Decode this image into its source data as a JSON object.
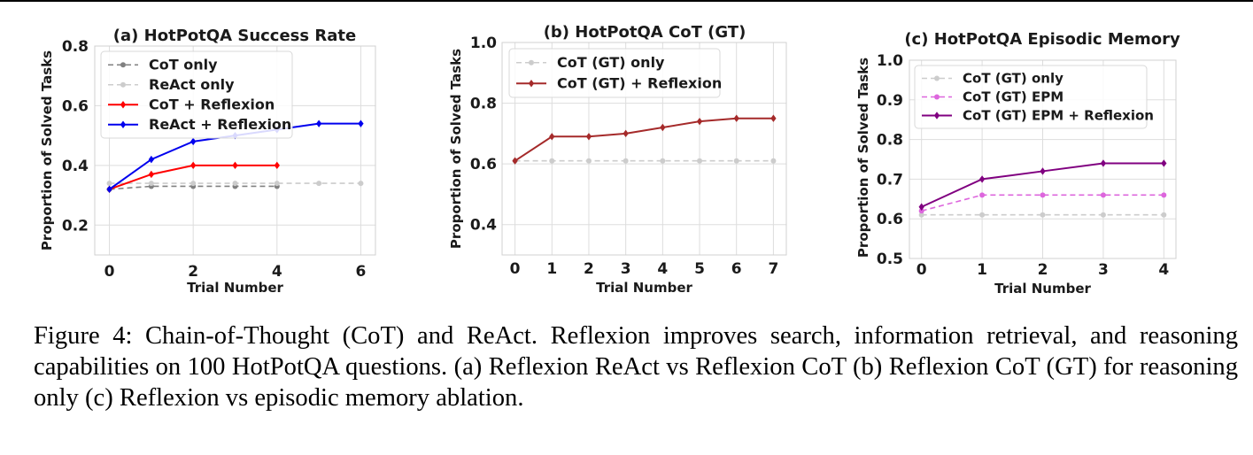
{
  "chart_data": [
    {
      "type": "line",
      "title": "(a) HotPotQA Success Rate",
      "xlabel": "Trial Number",
      "ylabel": "Proportion of Solved Tasks",
      "xlim": [
        -0.35,
        6.35
      ],
      "ylim": [
        0.1,
        0.8
      ],
      "xticks": [
        0,
        2,
        4,
        6
      ],
      "yticks": [
        0.2,
        0.4,
        0.6,
        0.8
      ],
      "grid": true,
      "legend": "top-left",
      "series": [
        {
          "name": "CoT only",
          "color": "#808080",
          "dash": true,
          "x": [
            0,
            1,
            2,
            3,
            4
          ],
          "values": [
            0.32,
            0.33,
            0.33,
            0.33,
            0.33
          ]
        },
        {
          "name": "ReAct only",
          "color": "#cccccc",
          "dash": true,
          "x": [
            0,
            1,
            2,
            3,
            4,
            5,
            6
          ],
          "values": [
            0.34,
            0.34,
            0.34,
            0.34,
            0.34,
            0.34,
            0.34
          ]
        },
        {
          "name": "CoT + Reflexion",
          "color": "#ff0000",
          "dash": false,
          "x": [
            0,
            1,
            2,
            3,
            4
          ],
          "values": [
            0.32,
            0.37,
            0.4,
            0.4,
            0.4
          ]
        },
        {
          "name": "ReAct + Reflexion",
          "color": "#0000ee",
          "dash": false,
          "x": [
            0,
            1,
            2,
            3,
            4,
            5,
            6
          ],
          "values": [
            0.32,
            0.42,
            0.48,
            0.5,
            0.52,
            0.54,
            0.54
          ]
        }
      ]
    },
    {
      "type": "line",
      "title": "(b) HotPotQA CoT (GT)",
      "xlabel": "Trial Number",
      "ylabel": "Proportion of Solved Tasks",
      "xlim": [
        -0.35,
        7.35
      ],
      "ylim": [
        0.3,
        1.0
      ],
      "xticks": [
        0,
        1,
        2,
        3,
        4,
        5,
        6,
        7
      ],
      "yticks": [
        0.4,
        0.6,
        0.8,
        1.0
      ],
      "grid": true,
      "legend": "top-left",
      "series": [
        {
          "name": "CoT (GT) only",
          "color": "#cccccc",
          "dash": true,
          "x": [
            0,
            1,
            2,
            3,
            4,
            5,
            6,
            7
          ],
          "values": [
            0.61,
            0.61,
            0.61,
            0.61,
            0.61,
            0.61,
            0.61,
            0.61
          ]
        },
        {
          "name": "CoT (GT) + Reflexion",
          "color": "#a52a2a",
          "dash": false,
          "x": [
            0,
            1,
            2,
            3,
            4,
            5,
            6,
            7
          ],
          "values": [
            0.61,
            0.69,
            0.69,
            0.7,
            0.72,
            0.74,
            0.75,
            0.75
          ]
        }
      ]
    },
    {
      "type": "line",
      "title": "(c) HotPotQA Episodic Memory",
      "xlabel": "Trial Number",
      "ylabel": "Proportion of Solved Tasks",
      "xlim": [
        -0.2,
        4.2
      ],
      "ylim": [
        0.5,
        1.0
      ],
      "xticks": [
        0,
        1,
        2,
        3,
        4
      ],
      "yticks": [
        0.5,
        0.6,
        0.7,
        0.8,
        0.9,
        1.0
      ],
      "grid": true,
      "legend": "top-left",
      "series": [
        {
          "name": "CoT (GT) only",
          "color": "#cccccc",
          "dash": true,
          "x": [
            0,
            1,
            2,
            3,
            4
          ],
          "values": [
            0.61,
            0.61,
            0.61,
            0.61,
            0.61
          ]
        },
        {
          "name": "CoT (GT) EPM",
          "color": "#dd66dd",
          "dash": true,
          "x": [
            0,
            1,
            2,
            3,
            4
          ],
          "values": [
            0.62,
            0.66,
            0.66,
            0.66,
            0.66
          ]
        },
        {
          "name": "CoT (GT) EPM + Reflexion",
          "color": "#800080",
          "dash": false,
          "x": [
            0,
            1,
            2,
            3,
            4
          ],
          "values": [
            0.63,
            0.7,
            0.72,
            0.74,
            0.74
          ]
        }
      ]
    }
  ],
  "caption": "Figure 4: Chain-of-Thought (CoT) and ReAct. Reflexion improves search, information retrieval, and reasoning capabilities on 100 HotPotQA questions. (a) Reflexion ReAct vs Reflexion CoT (b) Reflexion CoT (GT) for reasoning only (c) Reflexion vs episodic memory ablation."
}
